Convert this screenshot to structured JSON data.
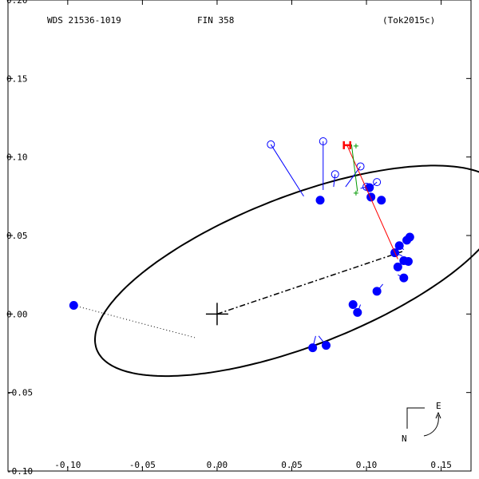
{
  "chart_data": {
    "type": "scatter",
    "header": {
      "left": "WDS 21536-1019",
      "center": "FIN 358",
      "right": "(Tok2015c)"
    },
    "x_ticks": [
      -0.1,
      -0.05,
      0.0,
      0.05,
      0.1,
      0.15
    ],
    "y_ticks": [
      0.2,
      0.15,
      0.1,
      0.05,
      0.0,
      -0.05,
      -0.1
    ],
    "x_tick_labels": [
      "-0.10",
      "-0.05",
      "0.00",
      "0.05",
      "0.10",
      "0.15"
    ],
    "y_tick_labels": [
      "0.20",
      "0.15",
      "0.10",
      "0.05",
      "0.00",
      "-0.05",
      "-0.10"
    ],
    "xlim": [
      -0.14,
      0.17
    ],
    "ylim": [
      -0.1,
      0.2
    ],
    "orbit_ellipse": {
      "center": [
        0.0555,
        0.0275
      ],
      "a": 0.145,
      "b": 0.048,
      "angle_deg": 20
    },
    "primary": [
      0.0,
      0.0
    ],
    "line_of_nodes": {
      "from": [
        0.0,
        0.0
      ],
      "to": [
        0.124,
        0.0398
      ]
    },
    "outlier": {
      "point": [
        -0.096,
        0.0055
      ],
      "orbit_point": [
        -0.015,
        -0.015
      ]
    },
    "filled_points": [
      {
        "obs": [
          0.069,
          0.0725
        ],
        "orbit": [
          0.069,
          0.072
        ]
      },
      {
        "obs": [
          0.102,
          0.0805
        ],
        "orbit": [
          0.101,
          0.078
        ]
      },
      {
        "obs": [
          0.103,
          0.0745
        ],
        "orbit": [
          0.103,
          0.077
        ]
      },
      {
        "obs": [
          0.11,
          0.0725
        ],
        "orbit": [
          0.11,
          0.073
        ]
      },
      {
        "obs": [
          0.129,
          0.049
        ],
        "orbit": [
          0.127,
          0.047
        ]
      },
      {
        "obs": [
          0.127,
          0.047
        ],
        "orbit": [
          0.127,
          0.045
        ]
      },
      {
        "obs": [
          0.122,
          0.0435
        ],
        "orbit": [
          0.125,
          0.041
        ]
      },
      {
        "obs": [
          0.119,
          0.039
        ],
        "orbit": [
          0.124,
          0.037
        ]
      },
      {
        "obs": [
          0.128,
          0.0335
        ],
        "orbit": [
          0.124,
          0.034
        ]
      },
      {
        "obs": [
          0.125,
          0.034
        ],
        "orbit": [
          0.124,
          0.034
        ]
      },
      {
        "obs": [
          0.121,
          0.03
        ],
        "orbit": [
          0.122,
          0.031
        ]
      },
      {
        "obs": [
          0.125,
          0.023
        ],
        "orbit": [
          0.121,
          0.025
        ]
      },
      {
        "obs": [
          0.107,
          0.0145
        ],
        "orbit": [
          0.111,
          0.019
        ]
      },
      {
        "obs": [
          0.091,
          0.006
        ],
        "orbit": [
          0.093,
          0.005
        ]
      },
      {
        "obs": [
          0.094,
          0.001
        ],
        "orbit": [
          0.096,
          0.006
        ]
      },
      {
        "obs": [
          0.073,
          -0.02
        ],
        "orbit": [
          0.068,
          -0.014
        ]
      },
      {
        "obs": [
          0.064,
          -0.0215
        ],
        "orbit": [
          0.066,
          -0.014
        ]
      }
    ],
    "open_points": [
      {
        "obs": [
          0.036,
          0.108
        ],
        "orbit": [
          0.058,
          0.075
        ]
      },
      {
        "obs": [
          0.071,
          0.11
        ],
        "orbit": [
          0.071,
          0.079
        ]
      },
      {
        "obs": [
          0.079,
          0.089
        ],
        "orbit": [
          0.078,
          0.081
        ]
      },
      {
        "obs": [
          0.096,
          0.094
        ],
        "orbit": [
          0.086,
          0.081
        ]
      },
      {
        "obs": [
          0.1,
          0.081
        ],
        "orbit": [
          0.096,
          0.08
        ]
      },
      {
        "obs": [
          0.107,
          0.084
        ],
        "orbit": [
          0.101,
          0.079
        ]
      }
    ],
    "latest_measure": {
      "obs": [
        0.087,
        0.1075
      ],
      "orbit": [
        0.121,
        0.035
      ]
    },
    "predicted_marks": [
      [
        0.093,
        0.107
      ],
      [
        0.093,
        0.077
      ]
    ],
    "green_line": {
      "from": [
        0.09,
        0.108
      ],
      "to": [
        0.094,
        0.078
      ]
    },
    "orientation": {
      "east": "E",
      "north": "N"
    }
  },
  "colors": {
    "axes": "#000000",
    "orbit": "#000000",
    "points": "#0000ff",
    "residual": "#0000ff",
    "latest": "#ff0000",
    "predicted": "#009900"
  }
}
